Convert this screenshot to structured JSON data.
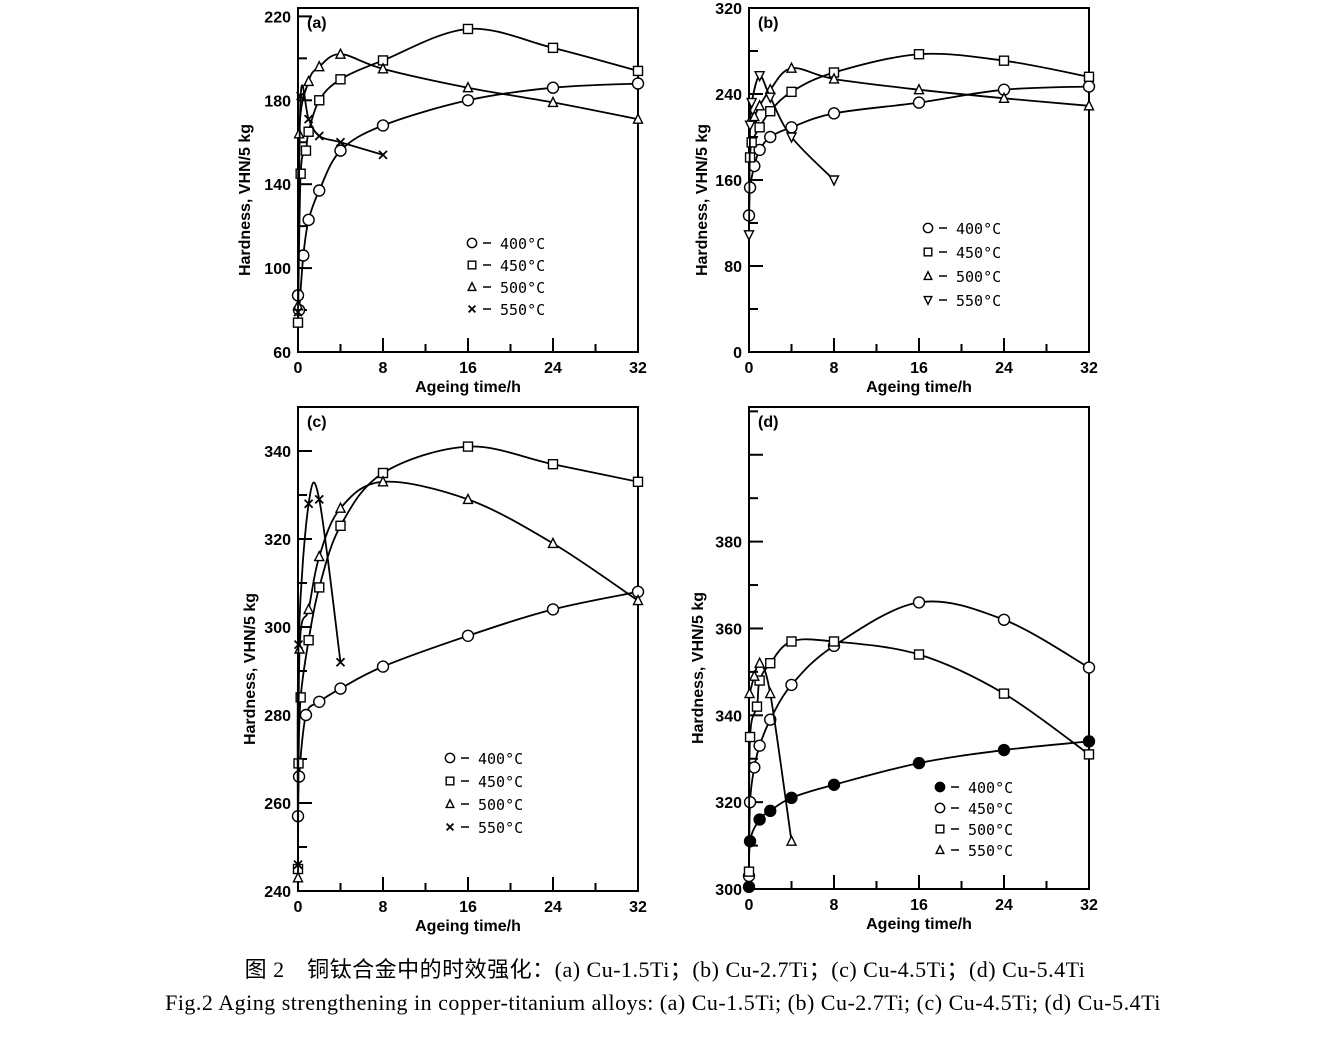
{
  "caption": {
    "zh": "图 2　铜钛合金中的时效强化：(a) Cu-1.5Ti；(b) Cu-2.7Ti；(c) Cu-4.5Ti；(d) Cu-5.4Ti",
    "en": "Fig.2 Aging strengthening in copper-titanium alloys: (a) Cu-1.5Ti; (b) Cu-2.7Ti; (c) Cu-4.5Ti; (d) Cu-5.4Ti"
  },
  "chart_data": [
    {
      "type": "line",
      "panel_label": "(a)",
      "xlabel": "Ageing time/h",
      "ylabel": "Hardness, VHN/5 kg",
      "xlim": [
        0,
        32
      ],
      "xticks": [
        "0",
        "8",
        "16",
        "24",
        "32"
      ],
      "ylim": [
        60,
        224
      ],
      "yticks": [
        "60",
        "100",
        "140",
        "180",
        "220"
      ],
      "grid": false,
      "legend": "center-right",
      "series": [
        {
          "name": "400°C",
          "marker": "circle",
          "points": [
            [
              0,
              87
            ],
            [
              0.1,
              80
            ],
            [
              0.5,
              106
            ],
            [
              1,
              123
            ],
            [
              2,
              137
            ],
            [
              4,
              156
            ],
            [
              8,
              168
            ],
            [
              16,
              180
            ],
            [
              24,
              186
            ],
            [
              32,
              188
            ]
          ]
        },
        {
          "name": "450°C",
          "marker": "square",
          "points": [
            [
              0,
              74
            ],
            [
              0.25,
              145
            ],
            [
              0.75,
              156
            ],
            [
              1,
              165
            ],
            [
              2,
              180
            ],
            [
              4,
              190
            ],
            [
              8,
              199
            ],
            [
              16,
              214
            ],
            [
              24,
              205
            ],
            [
              32,
              194
            ]
          ]
        },
        {
          "name": "500°C",
          "marker": "triangle",
          "points": [
            [
              0,
              82
            ],
            [
              0.1,
              164
            ],
            [
              1,
              189
            ],
            [
              2,
              196
            ],
            [
              4,
              202
            ],
            [
              8,
              195
            ],
            [
              16,
              186
            ],
            [
              24,
              179
            ],
            [
              32,
              171
            ]
          ]
        },
        {
          "name": "550°C",
          "marker": "x",
          "points": [
            [
              0,
              79
            ],
            [
              0.25,
              182
            ],
            [
              1,
              171
            ],
            [
              2,
              163
            ],
            [
              4,
              160
            ],
            [
              8,
              154
            ]
          ]
        }
      ]
    },
    {
      "type": "line",
      "panel_label": "(b)",
      "xlabel": "Ageing time/h",
      "ylabel": "Hardness, VHN/5 kg",
      "xlim": [
        0,
        32
      ],
      "xticks": [
        "0",
        "8",
        "16",
        "24",
        "32"
      ],
      "ylim": [
        0,
        320
      ],
      "yticks": [
        "0",
        "80",
        "160",
        "240",
        "320"
      ],
      "grid": false,
      "legend": "center-right",
      "series": [
        {
          "name": "400°C",
          "marker": "circle",
          "points": [
            [
              0,
              127
            ],
            [
              0.1,
              153
            ],
            [
              0.5,
              173
            ],
            [
              1,
              188
            ],
            [
              2,
              200
            ],
            [
              4,
              209
            ],
            [
              8,
              222
            ],
            [
              16,
              232
            ],
            [
              24,
              244
            ],
            [
              32,
              247
            ]
          ]
        },
        {
          "name": "450°C",
          "marker": "square",
          "points": [
            [
              0.1,
              181
            ],
            [
              0.25,
              195
            ],
            [
              1,
              209
            ],
            [
              2,
              224
            ],
            [
              4,
              242
            ],
            [
              8,
              260
            ],
            [
              16,
              277
            ],
            [
              24,
              271
            ],
            [
              32,
              256
            ]
          ]
        },
        {
          "name": "500°C",
          "marker": "triangle",
          "points": [
            [
              0.25,
              218
            ],
            [
              0.5,
              219
            ],
            [
              1,
              229
            ],
            [
              2,
              244
            ],
            [
              4,
              264
            ],
            [
              8,
              254
            ],
            [
              16,
              244
            ],
            [
              24,
              236
            ],
            [
              32,
              229
            ]
          ]
        },
        {
          "name": "550°C",
          "marker": "triangle-down",
          "points": [
            [
              0,
              109
            ],
            [
              0.1,
              211
            ],
            [
              0.25,
              232
            ],
            [
              1,
              257
            ],
            [
              2,
              237
            ],
            [
              4,
              200
            ],
            [
              8,
              160
            ]
          ]
        }
      ]
    },
    {
      "type": "line",
      "panel_label": "(c)",
      "xlabel": "Ageing time/h",
      "ylabel": "Hardness, VHN/5 kg",
      "xlim": [
        0,
        32
      ],
      "xticks": [
        "0",
        "8",
        "16",
        "24",
        "32"
      ],
      "ylim": [
        240,
        350
      ],
      "yticks": [
        "240",
        "260",
        "280",
        "300",
        "320",
        "340"
      ],
      "grid": false,
      "legend": "bottom-center",
      "series": [
        {
          "name": "400°C",
          "marker": "circle",
          "points": [
            [
              0,
              257
            ],
            [
              0.1,
              266
            ],
            [
              0.75,
              280
            ],
            [
              2,
              283
            ],
            [
              4,
              286
            ],
            [
              8,
              291
            ],
            [
              16,
              298
            ],
            [
              24,
              304
            ],
            [
              32,
              308
            ]
          ]
        },
        {
          "name": "450°C",
          "marker": "square",
          "points": [
            [
              0,
              245
            ],
            [
              0.05,
              269
            ],
            [
              0.25,
              284
            ],
            [
              1,
              297
            ],
            [
              2,
              309
            ],
            [
              4,
              323
            ],
            [
              8,
              335
            ],
            [
              16,
              341
            ],
            [
              24,
              337
            ],
            [
              32,
              333
            ]
          ]
        },
        {
          "name": "500°C",
          "marker": "triangle",
          "points": [
            [
              0,
              243
            ],
            [
              0.15,
              295
            ],
            [
              1,
              304
            ],
            [
              2,
              316
            ],
            [
              4,
              327
            ],
            [
              8,
              333
            ],
            [
              16,
              329
            ],
            [
              24,
              319
            ],
            [
              32,
              306
            ]
          ]
        },
        {
          "name": "550°C",
          "marker": "x",
          "points": [
            [
              0,
              246
            ],
            [
              0.05,
              296
            ],
            [
              1,
              328
            ],
            [
              2,
              329
            ],
            [
              4,
              292
            ]
          ]
        }
      ]
    },
    {
      "type": "line",
      "panel_label": "(d)",
      "xlabel": "Ageing time/h",
      "ylabel": "Hardness, VHN/5 kg",
      "xlim": [
        0,
        32
      ],
      "xticks": [
        "0",
        "8",
        "16",
        "24",
        "32"
      ],
      "ylim": [
        300,
        411
      ],
      "yticks": [
        "300",
        "320",
        "340",
        "360",
        "380"
      ],
      "grid": false,
      "legend": "bottom-right",
      "series": [
        {
          "name": "400°C",
          "marker": "filled-circle",
          "points": [
            [
              0,
              300.5
            ],
            [
              0.1,
              311
            ],
            [
              1,
              316
            ],
            [
              2,
              318
            ],
            [
              4,
              321
            ],
            [
              8,
              324
            ],
            [
              16,
              329
            ],
            [
              24,
              332
            ],
            [
              32,
              334
            ]
          ]
        },
        {
          "name": "450°C",
          "marker": "circle",
          "points": [
            [
              0,
              303
            ],
            [
              0.1,
              320
            ],
            [
              0.5,
              328
            ],
            [
              1,
              333
            ],
            [
              2,
              339
            ],
            [
              4,
              347
            ],
            [
              8,
              356
            ],
            [
              16,
              366
            ],
            [
              24,
              362
            ],
            [
              32,
              351
            ]
          ]
        },
        {
          "name": "500°C",
          "marker": "square",
          "points": [
            [
              0,
              304
            ],
            [
              0.1,
              335
            ],
            [
              0.75,
              342
            ],
            [
              1,
              348
            ],
            [
              2,
              352
            ],
            [
              4,
              357
            ],
            [
              8,
              357
            ],
            [
              16,
              354
            ],
            [
              24,
              345
            ],
            [
              32,
              331
            ]
          ]
        },
        {
          "name": "550°C",
          "marker": "triangle",
          "points": [
            [
              0.05,
              345
            ],
            [
              0.5,
              349
            ],
            [
              1,
              352
            ],
            [
              2,
              345
            ],
            [
              4,
              311
            ]
          ]
        }
      ]
    }
  ]
}
